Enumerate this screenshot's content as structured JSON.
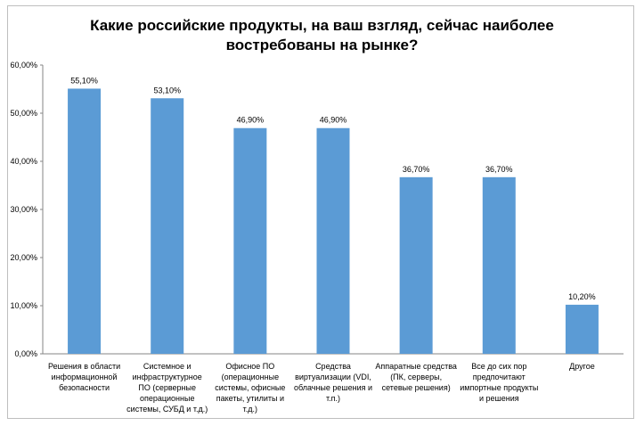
{
  "chart_data": {
    "type": "bar",
    "title_lines": [
      "Какие российские продукты, на ваш взгляд, сейчас наиболее",
      "востребованы на рынке?"
    ],
    "categories": [
      [
        "Решения в области",
        "информационной",
        "безопасности"
      ],
      [
        "Системное и",
        "инфраструктурное",
        "ПО (серверные",
        "операционные",
        "системы, СУБД и т.д.)"
      ],
      [
        "Офисное ПО",
        "(операционные",
        "системы, офисные",
        "пакеты, утилиты и",
        "т.д.)"
      ],
      [
        "Средства",
        "виртуализации (VDI,",
        "облачные решения и",
        "т.п.)"
      ],
      [
        "Аппаратные средства",
        "(ПК, серверы,",
        "сетевые решения)"
      ],
      [
        "Все до сих пор",
        "предпочитают",
        "импортные продукты",
        "и решения"
      ],
      [
        "Другое"
      ]
    ],
    "values": [
      55.1,
      53.1,
      46.9,
      46.9,
      36.7,
      36.7,
      10.2
    ],
    "value_labels": [
      "55,10%",
      "53,10%",
      "46,90%",
      "46,90%",
      "36,70%",
      "36,70%",
      "10,20%"
    ],
    "y_ticks": [
      "0,00%",
      "10,00%",
      "20,00%",
      "30,00%",
      "40,00%",
      "50,00%",
      "60,00%"
    ],
    "ylim": [
      0,
      60
    ],
    "bar_color": "#5b9bd5",
    "xlabel": "",
    "ylabel": ""
  }
}
